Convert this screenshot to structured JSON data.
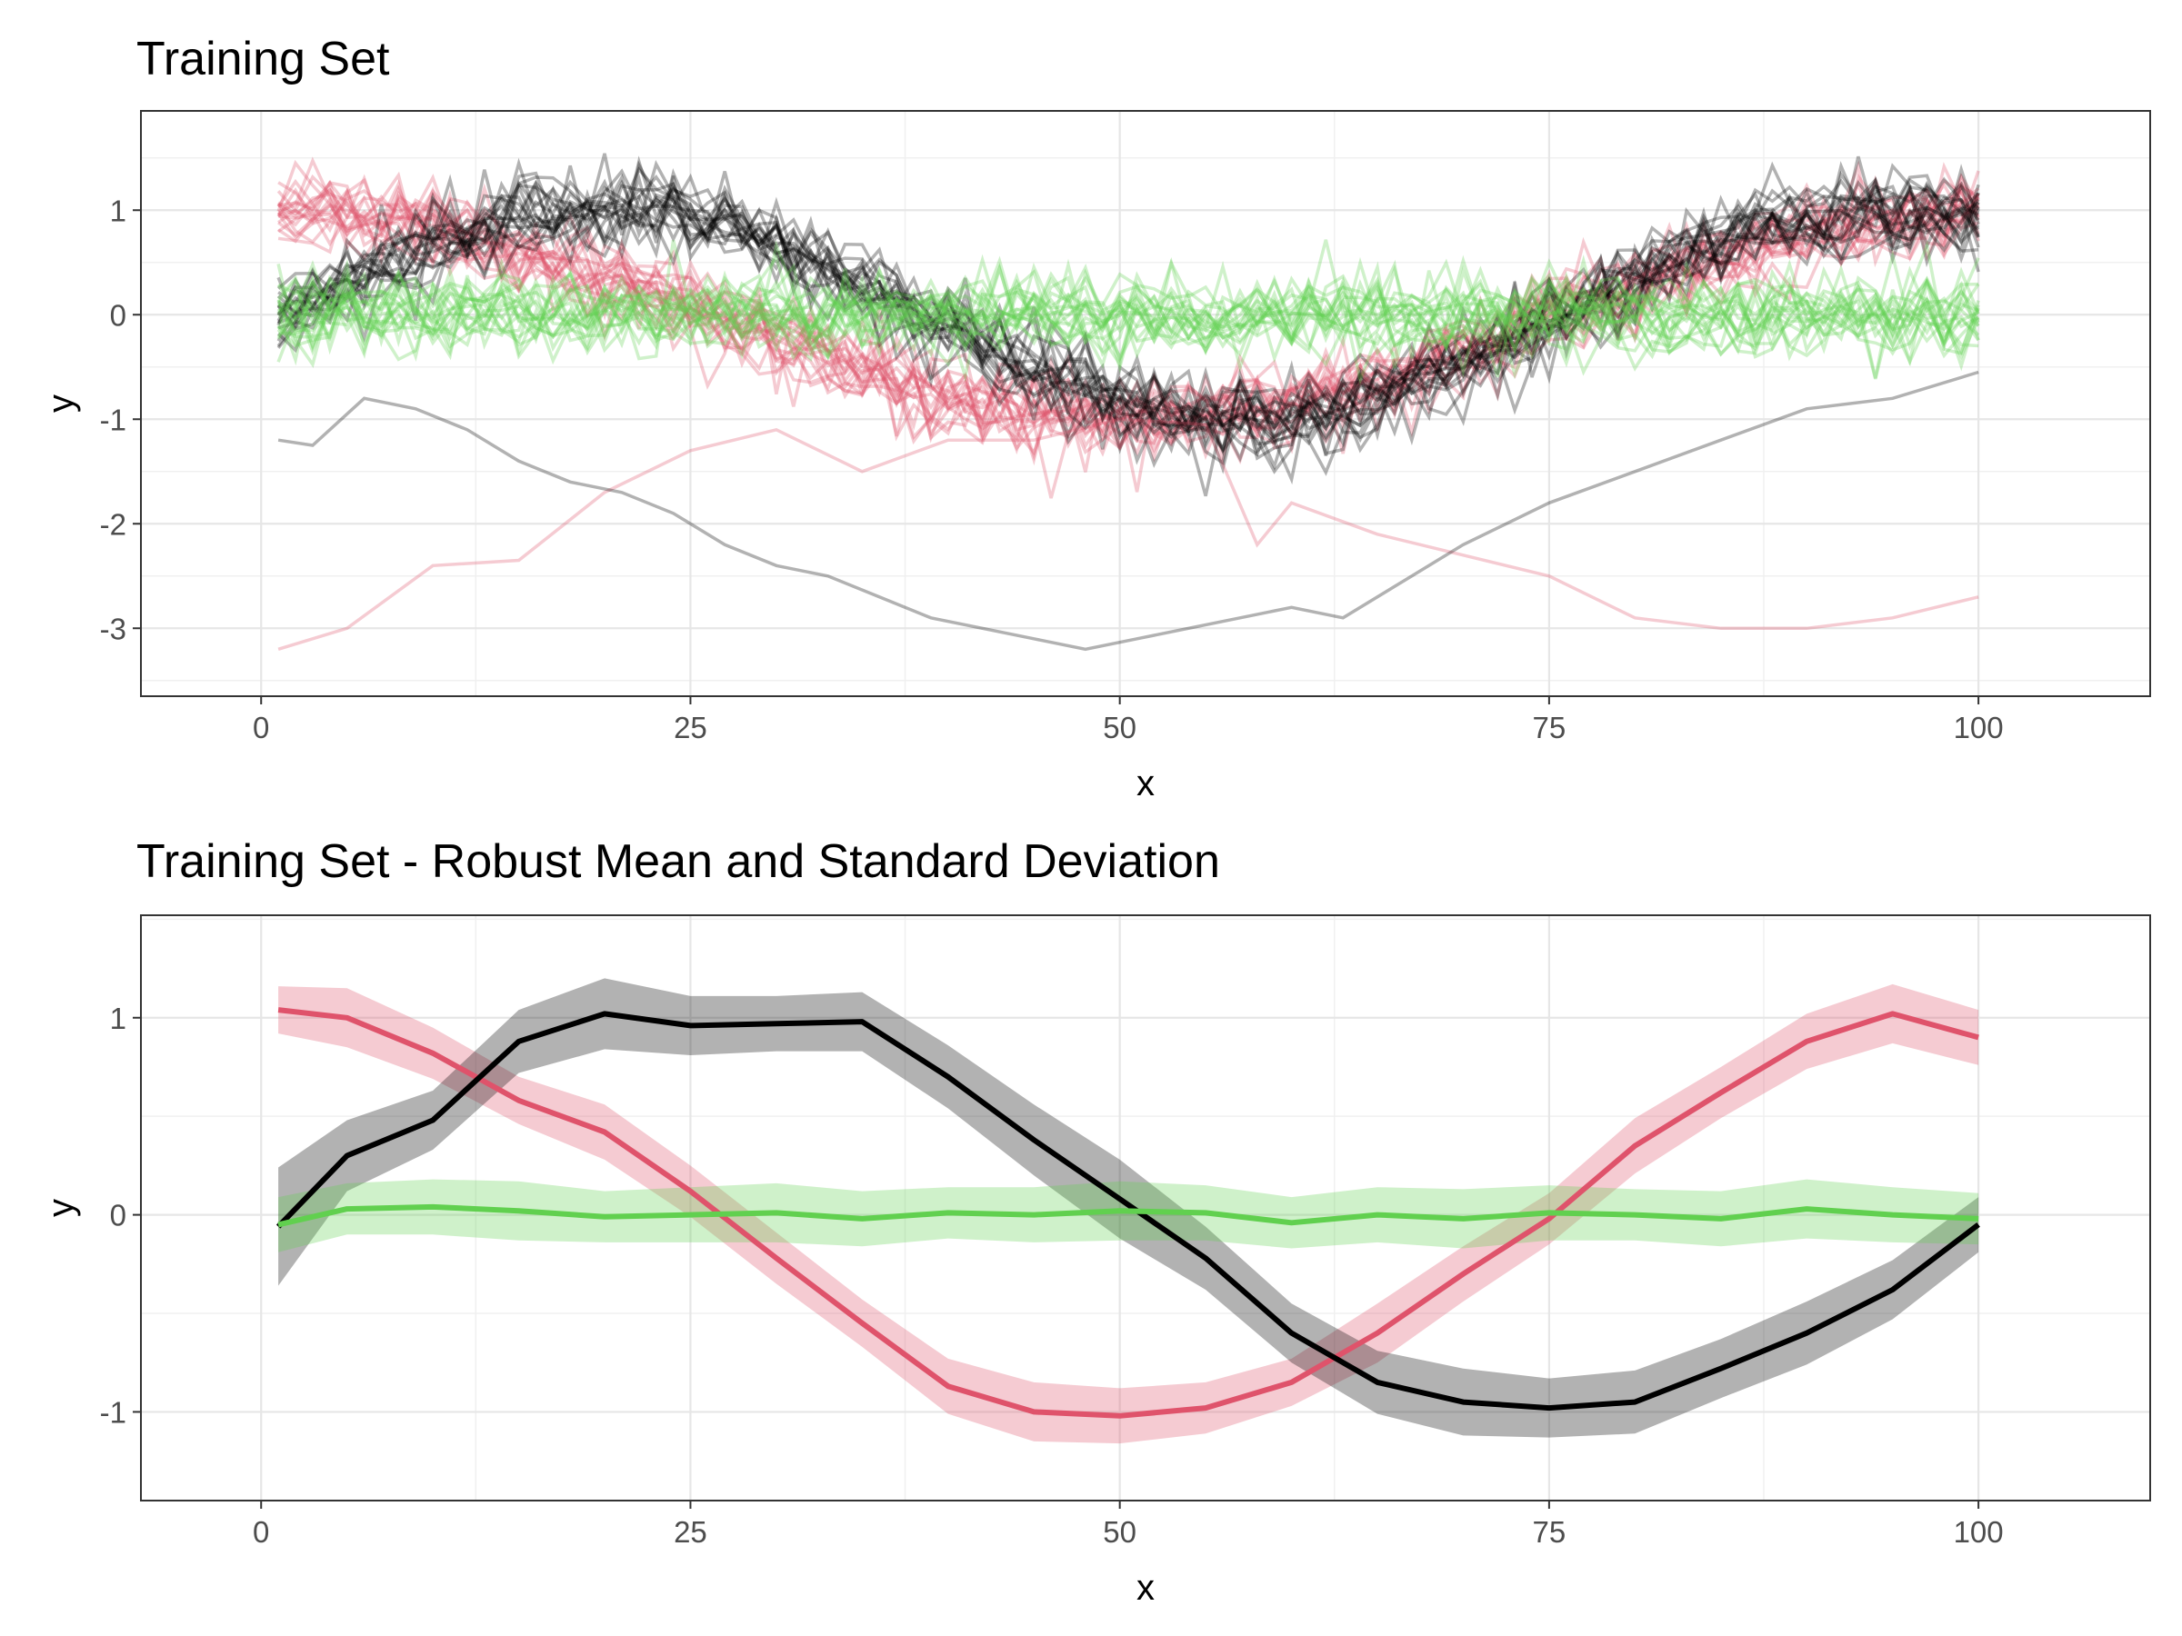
{
  "chart_data": [
    {
      "type": "line",
      "title": "Training Set",
      "xlabel": "x",
      "ylabel": "y",
      "xlim": [
        -7,
        110
      ],
      "ylim": [
        -3.65,
        1.95
      ],
      "x_ticks": [
        0,
        25,
        50,
        75,
        100
      ],
      "x_tick_labels": [
        "0",
        "25",
        "50",
        "75",
        "100"
      ],
      "y_ticks": [
        1,
        0,
        -1,
        -2,
        -3
      ],
      "y_tick_labels": [
        "1",
        "0",
        "-1",
        "-2",
        "-3"
      ],
      "grid": true,
      "legend": "none",
      "x_range": [
        1,
        100
      ],
      "groups": [
        {
          "color": "#DF536B",
          "count": 20,
          "shape": "cosine",
          "amplitude": 1.0,
          "noise_sd": 0.2,
          "line_opacity": 0.3
        },
        {
          "color": "#000000",
          "count": 20,
          "shape": "sine-shifted",
          "amplitude": 1.0,
          "noise_sd": 0.2,
          "line_opacity": 0.3
        },
        {
          "color": "#61D04F",
          "count": 20,
          "shape": "flat",
          "amplitude": 0.0,
          "noise_sd": 0.2,
          "line_opacity": 0.3
        }
      ],
      "outlier_series": [
        {
          "color": "#DF536B",
          "line_opacity": 0.3,
          "x": [
            1,
            5,
            10,
            15,
            20,
            25,
            30,
            35,
            40,
            45,
            50,
            55,
            58,
            60,
            65,
            70,
            75,
            80,
            85,
            90,
            95,
            100
          ],
          "y": [
            -3.2,
            -3.0,
            -2.4,
            -2.35,
            -1.7,
            -1.3,
            -1.1,
            -1.5,
            -1.2,
            -1.2,
            -1.0,
            -1.05,
            -2.2,
            -1.8,
            -2.1,
            -2.3,
            -2.5,
            -2.9,
            -3.0,
            -3.0,
            -2.9,
            -2.7
          ]
        },
        {
          "color": "#000000",
          "line_opacity": 0.3,
          "x": [
            1,
            3,
            6,
            9,
            12,
            15,
            18,
            21,
            24,
            27,
            30,
            33,
            36,
            39,
            42,
            45,
            48,
            51,
            54,
            57,
            60,
            63,
            66,
            70,
            75,
            80,
            85,
            90,
            95,
            100
          ],
          "y": [
            -1.2,
            -1.25,
            -0.8,
            -0.9,
            -1.1,
            -1.4,
            -1.6,
            -1.7,
            -1.9,
            -2.2,
            -2.4,
            -2.5,
            -2.7,
            -2.9,
            -3.0,
            -3.1,
            -3.2,
            -3.1,
            -3.0,
            -2.9,
            -2.8,
            -2.9,
            -2.6,
            -2.2,
            -1.8,
            -1.5,
            -1.2,
            -0.9,
            -0.8,
            -0.55
          ]
        }
      ]
    },
    {
      "type": "line",
      "title": "Training Set - Robust Mean and Standard Deviation",
      "xlabel": "x",
      "ylabel": "y",
      "xlim": [
        -7,
        110
      ],
      "ylim": [
        -1.45,
        1.52
      ],
      "x_ticks": [
        0,
        25,
        50,
        75,
        100
      ],
      "x_tick_labels": [
        "0",
        "25",
        "50",
        "75",
        "100"
      ],
      "y_ticks": [
        1,
        0,
        -1
      ],
      "y_tick_labels": [
        "1",
        "0",
        "-1"
      ],
      "grid": true,
      "legend": "none",
      "x": [
        1,
        5,
        10,
        15,
        20,
        25,
        30,
        35,
        40,
        45,
        50,
        55,
        60,
        65,
        70,
        75,
        80,
        85,
        90,
        95,
        100
      ],
      "series": [
        {
          "color": "#DF536B",
          "mean": [
            1.04,
            1.0,
            0.82,
            0.58,
            0.42,
            0.12,
            -0.22,
            -0.55,
            -0.87,
            -1.0,
            -1.02,
            -0.98,
            -0.85,
            -0.6,
            -0.3,
            -0.02,
            0.35,
            0.62,
            0.88,
            1.02,
            0.9
          ],
          "sd": [
            0.12,
            0.15,
            0.13,
            0.12,
            0.14,
            0.13,
            0.13,
            0.12,
            0.14,
            0.15,
            0.14,
            0.13,
            0.12,
            0.15,
            0.14,
            0.13,
            0.14,
            0.13,
            0.14,
            0.15,
            0.14
          ]
        },
        {
          "color": "#000000",
          "mean": [
            -0.06,
            0.3,
            0.48,
            0.88,
            1.02,
            0.96,
            0.97,
            0.98,
            0.7,
            0.38,
            0.08,
            -0.22,
            -0.6,
            -0.85,
            -0.95,
            -0.98,
            -0.95,
            -0.78,
            -0.6,
            -0.38,
            -0.05
          ],
          "sd": [
            0.3,
            0.18,
            0.15,
            0.16,
            0.18,
            0.15,
            0.14,
            0.15,
            0.16,
            0.18,
            0.2,
            0.16,
            0.15,
            0.16,
            0.17,
            0.15,
            0.16,
            0.15,
            0.16,
            0.15,
            0.14
          ]
        },
        {
          "color": "#61D04F",
          "mean": [
            -0.05,
            0.03,
            0.04,
            0.02,
            -0.01,
            0.0,
            0.01,
            -0.02,
            0.01,
            0.0,
            0.02,
            0.01,
            -0.04,
            0.0,
            -0.02,
            0.01,
            0.0,
            -0.02,
            0.03,
            0.0,
            -0.02
          ],
          "sd": [
            0.14,
            0.13,
            0.14,
            0.15,
            0.13,
            0.14,
            0.15,
            0.14,
            0.13,
            0.14,
            0.15,
            0.14,
            0.13,
            0.14,
            0.15,
            0.14,
            0.13,
            0.14,
            0.15,
            0.14,
            0.13
          ]
        }
      ]
    }
  ]
}
